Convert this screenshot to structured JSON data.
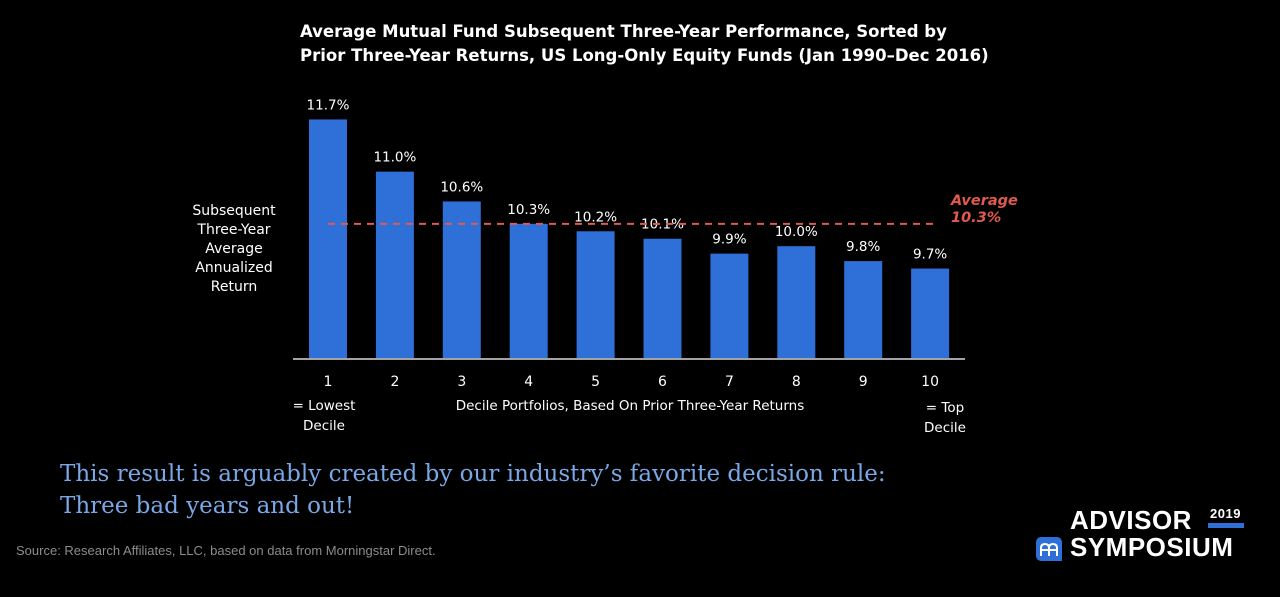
{
  "chart_data": {
    "type": "bar",
    "title_lines": [
      "Average Mutual Fund Subsequent Three-Year Performance, Sorted by",
      "Prior Three-Year Returns, US Long-Only Equity Funds (Jan 1990–Dec 2016)"
    ],
    "ylabel_lines": [
      "Subsequent",
      "Three-Year",
      "Average",
      "Annualized",
      "Return"
    ],
    "xlabel": "Decile Portfolios, Based On Prior Three-Year Returns",
    "categories": [
      "1",
      "2",
      "3",
      "4",
      "5",
      "6",
      "7",
      "8",
      "9",
      "10"
    ],
    "values": [
      11.7,
      11.0,
      10.6,
      10.3,
      10.2,
      10.1,
      9.9,
      10.0,
      9.8,
      9.7
    ],
    "data_labels": [
      "11.7%",
      "11.0%",
      "10.6%",
      "10.3%",
      "10.2%",
      "10.1%",
      "9.9%",
      "10.0%",
      "9.8%",
      "9.7%"
    ],
    "ylim": [
      8.5,
      11.8
    ],
    "average": {
      "value": 10.3,
      "label_lines": [
        "Average",
        "10.3%"
      ],
      "color": "#e05a4e"
    },
    "bar_color": "#2f6fd8",
    "first_category_note": [
      "= Lowest",
      "Decile"
    ],
    "last_category_note": [
      "= Top",
      "Decile"
    ],
    "grid": false
  },
  "caption_lines": [
    "This result is arguably created by our industry’s favorite decision rule:",
    "Three bad years and out!"
  ],
  "source": "Source: Research Affiliates, LLC, based on data from Morningstar Direct.",
  "logo": {
    "word1": "ADVISOR",
    "word2": "SYMPOSIUM",
    "year": "2019",
    "badge_icon": "research-affiliates-logo-icon",
    "accent": "#2f6fd8"
  }
}
